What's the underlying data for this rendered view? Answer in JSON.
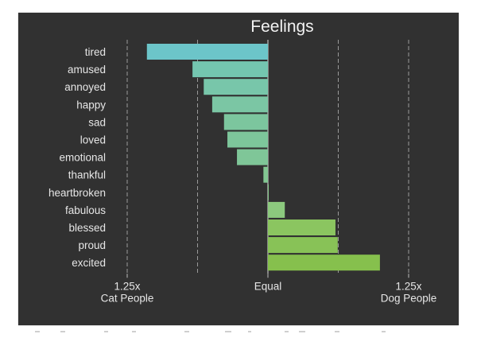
{
  "chart_data": {
    "type": "bar",
    "orientation": "horizontal",
    "title": "Feelings",
    "xlabel": "",
    "ylabel": "",
    "categories": [
      "tired",
      "amused",
      "annoyed",
      "happy",
      "sad",
      "loved",
      "emotional",
      "thankful",
      "heartbroken",
      "fabulous",
      "blessed",
      "proud",
      "excited"
    ],
    "values": [
      -0.215,
      -0.134,
      -0.114,
      -0.099,
      -0.078,
      -0.072,
      -0.055,
      -0.008,
      0.001,
      0.03,
      0.12,
      0.124,
      0.199
    ],
    "value_note": "signed ratio offset from Equal (negative = more Cat People, positive = more Dog People); 0.25 = 1.25x",
    "xlim": [
      -0.25,
      0.25
    ],
    "gridlines": [
      -0.25,
      -0.125,
      0,
      0.125,
      0.25
    ],
    "ticks": [
      {
        "value": -0.25,
        "label": "1.25x",
        "sublabel": "Cat People"
      },
      {
        "value": 0,
        "label": "Equal",
        "sublabel": ""
      },
      {
        "value": 0.25,
        "label": "1.25x",
        "sublabel": "Dog People"
      }
    ],
    "colors": [
      "#6cc5c9",
      "#74c6b0",
      "#78c6aa",
      "#7bc6a4",
      "#7cc69e",
      "#7dc69b",
      "#7fc698",
      "#82c792",
      "#86c88a",
      "#8cc97e",
      "#8bc560",
      "#88c257",
      "#86c04d"
    ],
    "background": "#313131",
    "grid": true
  }
}
